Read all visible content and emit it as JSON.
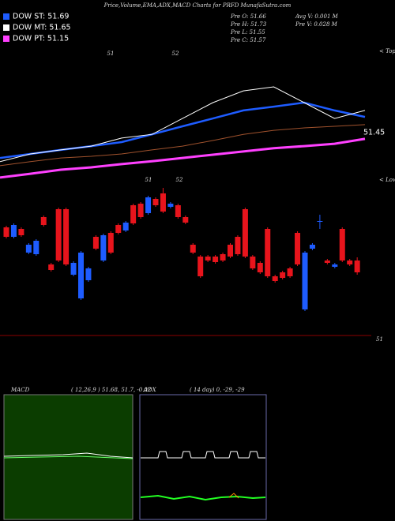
{
  "header": {
    "title": "Price,Volume,EMA,ADX,MACD Charts for PRFD MunafaSutra.com",
    "dow": [
      {
        "label": "DOW ST: 51.69",
        "color": "#1e5cff"
      },
      {
        "label": "DOW MT: 51.65",
        "color": "#ffffff"
      },
      {
        "label": "DOW PT: 51.15",
        "color": "#ff40ff"
      }
    ],
    "prev": [
      "Pre  O: 51.66",
      "Pre  H: 51.73",
      "Pre  L: 51.55",
      "Pre  C: 51.57"
    ],
    "volume": [
      "Avg V: 0.001 M",
      "Pre  V: 0.028 M"
    ]
  },
  "chart_data": [
    {
      "type": "line",
      "tops_label": "< Tops",
      "annotations": [
        "51",
        "52"
      ],
      "last_label": "51.45",
      "ylim": [
        51.3,
        51.8
      ],
      "series": [
        {
          "name": "EMA long",
          "color": "#ff40ff",
          "values": [
            51.315,
            51.329,
            51.344,
            51.353,
            51.365,
            51.376,
            51.388,
            51.4,
            51.412,
            51.424,
            51.432,
            51.441,
            51.459
          ]
        },
        {
          "name": "EMA mid",
          "color": "#a0522d",
          "values": [
            51.359,
            51.374,
            51.388,
            51.394,
            51.403,
            51.418,
            51.432,
            51.453,
            51.476,
            51.491,
            51.5,
            51.506,
            51.512
          ]
        },
        {
          "name": "EMA short",
          "color": "#1e5cff",
          "values": [
            51.388,
            51.403,
            51.418,
            51.432,
            51.447,
            51.476,
            51.506,
            51.535,
            51.565,
            51.579,
            51.594,
            51.565,
            51.541
          ]
        },
        {
          "name": "Price",
          "color": "#ffffff",
          "values": [
            51.374,
            51.403,
            51.418,
            51.432,
            51.462,
            51.476,
            51.535,
            51.594,
            51.638,
            51.653,
            51.594,
            51.535,
            51.565
          ]
        }
      ]
    },
    {
      "type": "candlestick",
      "lows_label": "< Lows",
      "annotations": [
        "51",
        "52"
      ],
      "ylim": [
        51,
        52
      ],
      "yticks": [
        51
      ],
      "up_color": "#1e5cff",
      "down_color": "#e8141c",
      "open": [
        51.71,
        51.65,
        51.7,
        51.55,
        51.54,
        51.775,
        51.475,
        51.825,
        51.825,
        51.41,
        51.26,
        51.375,
        51.65,
        51.5,
        51.675,
        51.725,
        51.69,
        51.85,
        51.86,
        51.8,
        51.89,
        51.925,
        51.84,
        51.85,
        51.775,
        51.6,
        51.525,
        51.525,
        51.525,
        51.54,
        51.6,
        51.65,
        51.825,
        51.525,
        51.485,
        51.7,
        51.4,
        51.425,
        51.45,
        51.675,
        51.19,
        51.575,
        51.75,
        51.5,
        51.46,
        51.7,
        51.5,
        51.5
      ],
      "close": [
        51.65,
        51.725,
        51.66,
        51.6,
        51.625,
        51.725,
        51.44,
        51.5,
        51.475,
        51.485,
        51.55,
        51.45,
        51.575,
        51.66,
        51.55,
        51.675,
        51.74,
        51.735,
        51.775,
        51.9,
        51.85,
        51.81,
        51.86,
        51.775,
        51.74,
        51.55,
        51.4,
        51.5,
        51.49,
        51.5,
        51.525,
        51.54,
        51.525,
        51.45,
        51.425,
        51.4,
        51.37,
        51.39,
        51.4,
        51.475,
        51.55,
        51.6,
        51.75,
        51.485,
        51.475,
        51.5,
        51.475,
        51.425
      ],
      "high": [
        51.72,
        51.735,
        51.71,
        51.61,
        51.635,
        51.785,
        51.485,
        51.835,
        51.835,
        51.495,
        51.56,
        51.46,
        51.66,
        51.67,
        51.685,
        51.735,
        51.75,
        51.86,
        51.87,
        51.91,
        51.9,
        51.96,
        51.87,
        51.86,
        51.785,
        51.61,
        51.535,
        51.535,
        51.535,
        51.55,
        51.61,
        51.66,
        51.835,
        51.535,
        51.495,
        51.71,
        51.41,
        51.435,
        51.46,
        51.685,
        51.56,
        51.61,
        51.79,
        51.51,
        51.485,
        51.71,
        51.51,
        51.52
      ],
      "low": [
        51.64,
        51.64,
        51.65,
        51.54,
        51.53,
        51.715,
        51.43,
        51.49,
        51.465,
        51.4,
        51.25,
        51.365,
        51.565,
        51.49,
        51.54,
        51.665,
        51.68,
        51.725,
        51.765,
        51.79,
        51.84,
        51.8,
        51.83,
        51.765,
        51.73,
        51.54,
        51.39,
        51.49,
        51.48,
        51.49,
        51.515,
        51.53,
        51.515,
        51.44,
        51.415,
        51.39,
        51.36,
        51.38,
        51.39,
        51.465,
        51.18,
        51.565,
        51.7,
        51.475,
        51.45,
        51.49,
        51.465,
        51.41
      ]
    }
  ],
  "macd": {
    "title": "MACD",
    "params": "( 12,26,9 ) 51.68, 51.7, -0.02"
  },
  "adx": {
    "title": "ADX",
    "params": "( 14  day) 0, -29, -29"
  }
}
